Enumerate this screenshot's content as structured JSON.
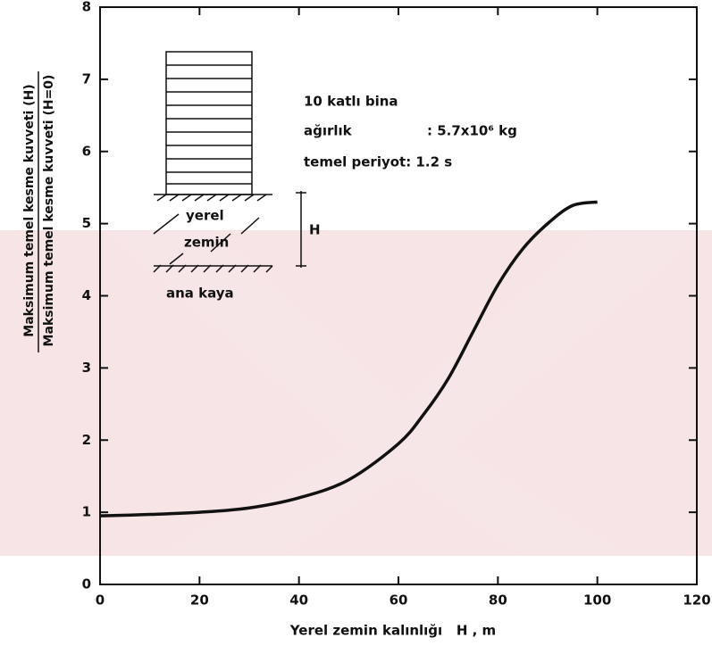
{
  "chart_data": {
    "type": "line",
    "x_label": "Yerel zemin kalınlığı   H , m",
    "y_label_numerator": "Maksimum temel kesme kuvveti (H)",
    "y_label_denominator": "Maksimum temel kesme kuvveti (H=0)",
    "x": [
      0,
      10,
      20,
      30,
      40,
      50,
      60,
      65,
      70,
      75,
      80,
      85,
      90,
      95,
      100
    ],
    "values": [
      0.95,
      0.97,
      1.0,
      1.06,
      1.2,
      1.45,
      1.95,
      2.35,
      2.85,
      3.5,
      4.15,
      4.65,
      5.0,
      5.25,
      5.3
    ],
    "color": "#111111",
    "xlim": [
      0,
      120
    ],
    "xticks": [
      0,
      20,
      40,
      60,
      80,
      100,
      120
    ],
    "ylim": [
      0,
      8
    ],
    "yticks": [
      0,
      1,
      2,
      3,
      4,
      5,
      6,
      7,
      8
    ],
    "grid": false,
    "annotations": [
      "10 katlı bina",
      "ağırlık",
      ": 5.7x10⁶ kg",
      "temel periyot: 1.2 s",
      "yerel",
      "zemin",
      "ana kaya",
      "H"
    ]
  }
}
